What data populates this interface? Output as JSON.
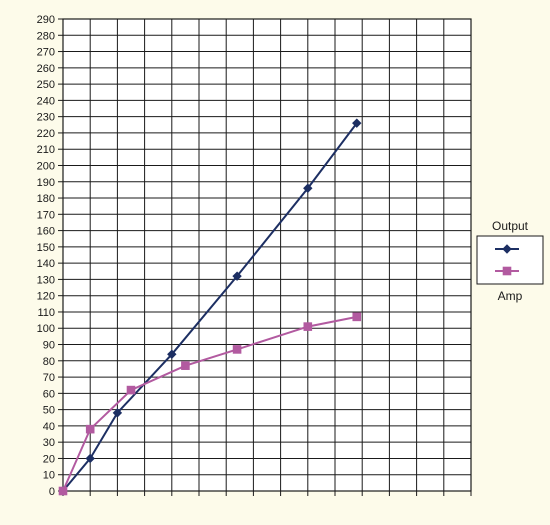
{
  "chart_data": {
    "type": "line",
    "x": [
      0,
      1,
      2,
      3,
      4,
      5,
      6,
      7,
      8,
      9,
      10,
      11,
      12,
      13,
      14,
      15
    ],
    "ylim": [
      0,
      290
    ],
    "ytick_step": 10,
    "grid": true,
    "legend_position": "right",
    "series": [
      {
        "name": "Output",
        "marker": "diamond",
        "color": "#1d2f63",
        "points": [
          [
            0,
            0
          ],
          [
            1,
            20
          ],
          [
            2,
            48
          ],
          [
            4,
            84
          ],
          [
            6.4,
            132
          ],
          [
            9,
            186
          ],
          [
            10.8,
            226
          ]
        ]
      },
      {
        "name": "Amp",
        "marker": "square",
        "color": "#b25aa0",
        "points": [
          [
            0,
            0
          ],
          [
            1,
            38
          ],
          [
            2.5,
            62
          ],
          [
            4.5,
            77
          ],
          [
            6.4,
            87
          ],
          [
            9,
            101
          ],
          [
            10.8,
            107
          ]
        ]
      }
    ]
  },
  "colors": {
    "background": "#fdfbea",
    "grid": "#1a1a1a"
  }
}
